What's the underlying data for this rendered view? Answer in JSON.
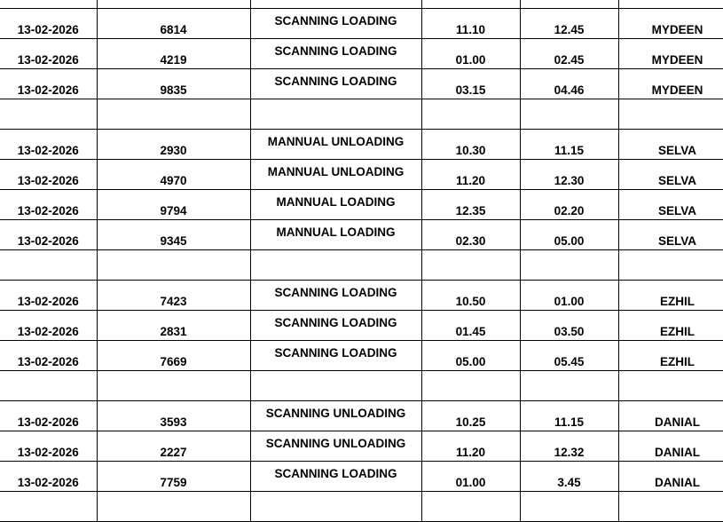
{
  "rows": [
    [
      "13-02-2026",
      "6814",
      "SCANNING LOADING",
      "11.10",
      "12.45",
      "MYDEEN"
    ],
    [
      "13-02-2026",
      "4219",
      "SCANNING LOADING",
      "01.00",
      "02.45",
      "MYDEEN"
    ],
    [
      "13-02-2026",
      "9835",
      "SCANNING LOADING",
      "03.15",
      "04.46",
      "MYDEEN"
    ],
    [
      "",
      "",
      "",
      "",
      "",
      ""
    ],
    [
      "13-02-2026",
      "2930",
      "MANNUAL UNLOADING",
      "10.30",
      "11.15",
      "SELVA"
    ],
    [
      "13-02-2026",
      "4970",
      "MANNUAL UNLOADING",
      "11.20",
      "12.30",
      "SELVA"
    ],
    [
      "13-02-2026",
      "9794",
      "MANNUAL LOADING",
      "12.35",
      "02.20",
      "SELVA"
    ],
    [
      "13-02-2026",
      "9345",
      "MANNUAL LOADING",
      "02.30",
      "05.00",
      "SELVA"
    ],
    [
      "",
      "",
      "",
      "",
      "",
      ""
    ],
    [
      "13-02-2026",
      "7423",
      "SCANNING LOADING",
      "10.50",
      "01.00",
      "EZHIL"
    ],
    [
      "13-02-2026",
      "2831",
      "SCANNING LOADING",
      "01.45",
      "03.50",
      "EZHIL"
    ],
    [
      "13-02-2026",
      "7669",
      "SCANNING LOADING",
      "05.00",
      "05.45",
      "EZHIL"
    ],
    [
      "",
      "",
      "",
      "",
      "",
      ""
    ],
    [
      "13-02-2026",
      "3593",
      "SCANNING UNLOADING",
      "10.25",
      "11.15",
      "DANIAL"
    ],
    [
      "13-02-2026",
      "2227",
      "SCANNING UNLOADING",
      "11.20",
      "12.32",
      "DANIAL"
    ],
    [
      "13-02-2026",
      "7759",
      "SCANNING LOADING",
      "01.00",
      "3.45",
      "DANIAL"
    ],
    [
      "",
      "",
      "",
      "",
      "",
      ""
    ]
  ]
}
